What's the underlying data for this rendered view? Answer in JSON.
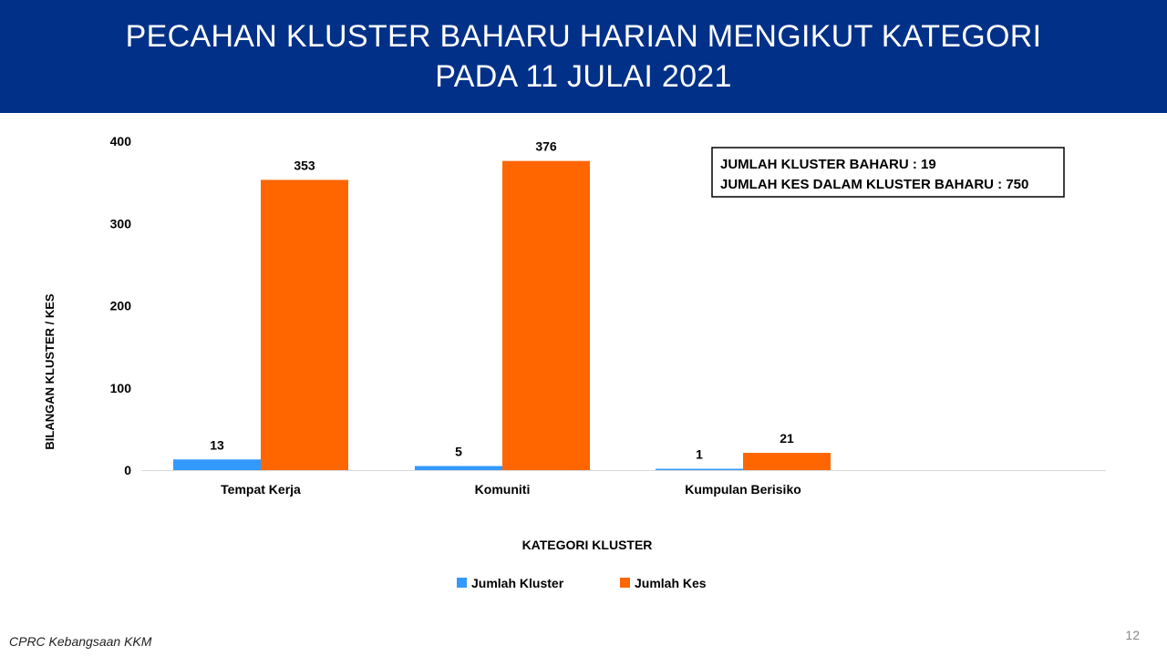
{
  "header": {
    "title_line1": "PECAHAN KLUSTER BAHARU HARIAN MENGIKUT KATEGORI",
    "title_line2": "PADA 11 JULAI 2021",
    "background": "#003087"
  },
  "summary": {
    "line1": "JUMLAH KLUSTER BAHARU : 19",
    "line2": "JUMLAH KES DALAM KLUSTER BAHARU : 750"
  },
  "chart_data": {
    "type": "bar",
    "categories": [
      "Tempat Kerja",
      "Komuniti",
      "Kumpulan Berisiko"
    ],
    "series": [
      {
        "name": "Jumlah Kluster",
        "values": [
          13,
          5,
          1
        ],
        "color": "#3399ff"
      },
      {
        "name": "Jumlah Kes",
        "values": [
          353,
          376,
          21
        ],
        "color": "#ff6600"
      }
    ],
    "xlabel": "KATEGORI KLUSTER",
    "ylabel": "BILANGAN KLUSTER / KES",
    "ylim": [
      0,
      400
    ],
    "yticks": [
      0,
      100,
      200,
      300,
      400
    ],
    "grid": false,
    "legend": "bottom",
    "data_labels": true
  },
  "footer": {
    "source": "CPRC Kebangsaan KKM",
    "page_number": "12"
  }
}
